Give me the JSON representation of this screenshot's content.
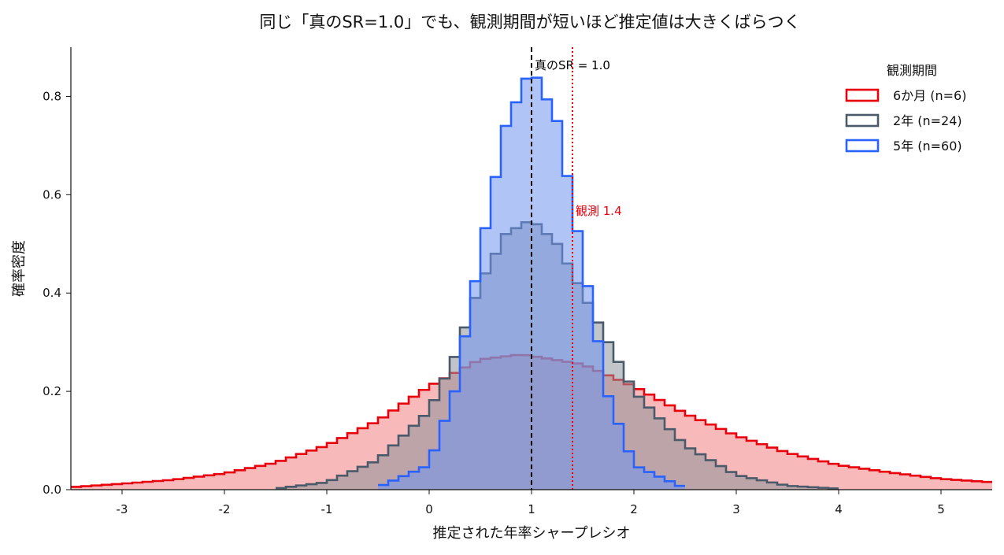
{
  "chart_data": {
    "type": "area",
    "title": "同じ「真のSR=1.0」でも、観測期間が短いほど推定値は大きくばらつく",
    "xlabel": "推定された年率シャープレシオ",
    "ylabel": "確率密度",
    "xlim": [
      -3.5,
      5.5
    ],
    "ylim": [
      0,
      0.9
    ],
    "xticks": [
      -3,
      -2,
      -1,
      0,
      1,
      2,
      3,
      4,
      5
    ],
    "xtick_labels": [
      "-3",
      "-2",
      "-1",
      "0",
      "1",
      "2",
      "3",
      "4",
      "5"
    ],
    "yticks": [
      0.0,
      0.2,
      0.4,
      0.6,
      0.8
    ],
    "ytick_labels": [
      "0.0",
      "0.2",
      "0.4",
      "0.6",
      "0.8"
    ],
    "grid": false,
    "legend": {
      "title": "観測期間",
      "placement": "top-right"
    },
    "series": [
      {
        "name": "6か月 (n=6)",
        "color": "#e8000b",
        "fill": "#f07f7f",
        "x": [
          -3.5,
          -3.0,
          -2.5,
          -2.0,
          -1.5,
          -1.0,
          -0.5,
          0.0,
          0.5,
          0.9,
          1.0,
          1.5,
          2.0,
          2.5,
          3.0,
          3.5,
          4.0,
          4.5,
          5.0,
          5.5
        ],
        "values": [
          0.005,
          0.012,
          0.02,
          0.033,
          0.055,
          0.09,
          0.14,
          0.21,
          0.265,
          0.275,
          0.272,
          0.255,
          0.21,
          0.155,
          0.11,
          0.075,
          0.05,
          0.035,
          0.022,
          0.015
        ]
      },
      {
        "name": "2年 (n=24)",
        "color": "#4a5a6a",
        "fill": "#8e939a",
        "x": [
          -1.5,
          -1.0,
          -0.5,
          0.0,
          0.25,
          0.5,
          0.75,
          1.0,
          1.25,
          1.5,
          1.75,
          2.0,
          2.5,
          3.0,
          3.5,
          4.0
        ],
        "values": [
          0.002,
          0.015,
          0.06,
          0.16,
          0.27,
          0.42,
          0.52,
          0.55,
          0.5,
          0.4,
          0.3,
          0.2,
          0.09,
          0.03,
          0.008,
          0.002
        ]
      },
      {
        "name": "5年 (n=60)",
        "color": "#2962ff",
        "fill": "#6f93ef",
        "x": [
          -0.5,
          0.0,
          0.25,
          0.5,
          0.75,
          1.0,
          1.25,
          1.5,
          1.75,
          2.0,
          2.5
        ],
        "values": [
          0.005,
          0.05,
          0.2,
          0.48,
          0.74,
          0.86,
          0.75,
          0.47,
          0.19,
          0.05,
          0.003
        ]
      }
    ],
    "reference_lines": [
      {
        "label": "真のSR = 1.0",
        "x": 1.0,
        "color": "#000000",
        "style": "dashed"
      },
      {
        "label": "観測 1.4",
        "x": 1.4,
        "color": "#e8000b",
        "style": "dotted"
      }
    ]
  }
}
